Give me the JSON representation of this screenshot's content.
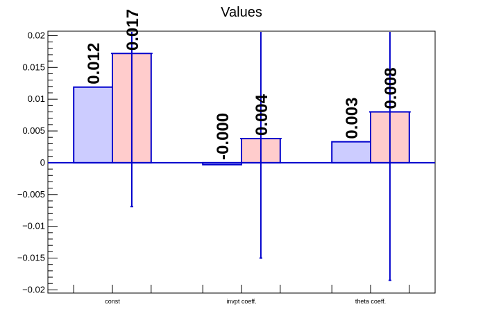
{
  "chart_data": {
    "type": "bar",
    "title": "Values",
    "categories": [
      "const",
      "invpt coeff.",
      "theta coeff."
    ],
    "series": [
      {
        "values": [
          0.0119,
          -0.0003,
          0.0033
        ],
        "labels": [
          "0.012",
          "-0.000",
          "0.003"
        ],
        "color": "#ccccff"
      },
      {
        "values": [
          0.0172,
          0.0038,
          0.008
        ],
        "labels": [
          "0.017",
          "0.004",
          "0.008"
        ],
        "color": "#ffcccc",
        "error_low": [
          -0.0069,
          -0.015,
          -0.0185
        ],
        "error_high": [
          0.0213,
          0.0213,
          0.0213
        ]
      }
    ],
    "ylim": [
      -0.0205,
      0.0207
    ],
    "yticks": [
      -0.02,
      -0.015,
      -0.01,
      -0.005,
      0,
      0.005,
      0.01,
      0.015,
      0.02
    ],
    "ytick_labels": [
      "−0.02",
      "−0.015",
      "−0.01",
      "−0.005",
      "0",
      "0.005",
      "0.01",
      "0.015",
      "0.02"
    ],
    "xlabel": "",
    "ylabel": "",
    "grid": false,
    "legend": "none",
    "bar_edge_color": "#0000cc",
    "errorbar_color": "#0000cc"
  }
}
